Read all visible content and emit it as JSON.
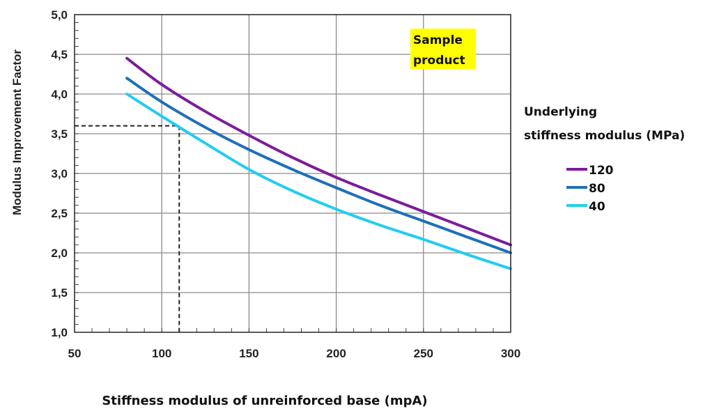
{
  "chart_data": {
    "type": "line",
    "title": "",
    "xlabel": "Stiffness modulus of unreinforced base (mpA)",
    "ylabel": "Modulus Improvement Factor",
    "xlim": [
      50,
      300
    ],
    "ylim": [
      1.0,
      5.0
    ],
    "xticks": [
      "50",
      "100",
      "150",
      "200",
      "250",
      "300"
    ],
    "yticks": [
      "1,0",
      "1,5",
      "2,0",
      "2,5",
      "3,0",
      "3,5",
      "4,0",
      "4,5",
      "5,0"
    ],
    "grid": true,
    "legend": {
      "title_lines": [
        "Underlying",
        "stiffness modulus (MPa)"
      ],
      "placement": "right"
    },
    "annotation": {
      "text_lines": [
        "Sample",
        "product"
      ],
      "highlight_color": "#ffff00"
    },
    "reference_line": {
      "x": 110,
      "y": 3.6
    },
    "series": [
      {
        "name": "120",
        "color": "#7b1d9a",
        "x": [
          80,
          100,
          125,
          150,
          175,
          200,
          225,
          250,
          275,
          300
        ],
        "y": [
          4.45,
          4.12,
          3.78,
          3.48,
          3.2,
          2.95,
          2.73,
          2.52,
          2.31,
          2.1
        ]
      },
      {
        "name": "80",
        "color": "#1f6fb8",
        "x": [
          80,
          100,
          125,
          150,
          175,
          200,
          225,
          250,
          275,
          300
        ],
        "y": [
          4.2,
          3.9,
          3.58,
          3.3,
          3.05,
          2.82,
          2.6,
          2.4,
          2.2,
          2.0
        ]
      },
      {
        "name": "40",
        "color": "#22ccf2",
        "x": [
          80,
          100,
          125,
          150,
          175,
          200,
          225,
          250,
          275,
          300
        ],
        "y": [
          4.0,
          3.72,
          3.38,
          3.05,
          2.78,
          2.55,
          2.35,
          2.17,
          1.98,
          1.8
        ]
      }
    ]
  }
}
